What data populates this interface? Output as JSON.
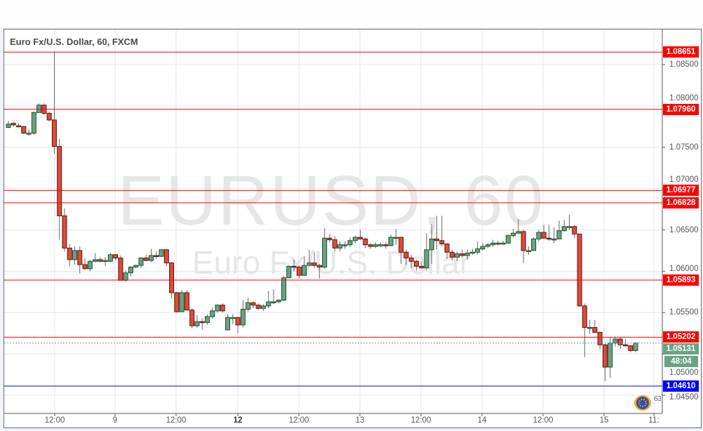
{
  "chart_title": "Euro Fx/U.S. Dollar, 60, FXCM",
  "watermark": {
    "symbol": "EURUSD, 60",
    "name": "Euro Fx/U.S. Dollar"
  },
  "colors": {
    "up": "#6aa384",
    "down": "#dd4b39",
    "level_red": "#ff0000",
    "level_blue": "#0000ff",
    "current": "#6aa384"
  },
  "logo_number": "63",
  "current_price": {
    "value": "1.05131",
    "countdown": "48:04"
  },
  "levels": [
    {
      "value": "1.08651",
      "color": "red"
    },
    {
      "value": "1.07960",
      "color": "red"
    },
    {
      "value": "1.06977",
      "color": "red"
    },
    {
      "value": "1.06828",
      "color": "red"
    },
    {
      "value": "1.05893",
      "color": "red"
    },
    {
      "value": "1.05202",
      "color": "red"
    },
    {
      "value": "1.04610",
      "color": "blue"
    }
  ],
  "price_ticks": [
    "1.08500",
    "1.08000",
    "1.07500",
    "1.07000",
    "1.06500",
    "1.06000",
    "1.05500",
    "1.05000",
    "1.04500"
  ],
  "time_labels": [
    {
      "text": "12:00",
      "bold": false
    },
    {
      "text": "9",
      "bold": false
    },
    {
      "text": "12:00",
      "bold": false
    },
    {
      "text": "12",
      "bold": true
    },
    {
      "text": "12:00",
      "bold": false
    },
    {
      "text": "13",
      "bold": false
    },
    {
      "text": "12:00",
      "bold": false
    },
    {
      "text": "14",
      "bold": false
    },
    {
      "text": "12:00",
      "bold": false
    },
    {
      "text": "15",
      "bold": false
    },
    {
      "text": "11:",
      "bold": false
    }
  ],
  "chart_data": {
    "type": "candlestick",
    "interval": "60",
    "ylim": [
      1.0432,
      1.0893
    ],
    "grid": true,
    "ohlc": [
      [
        1.0774,
        1.0782,
        1.0773,
        1.0778
      ],
      [
        1.0779,
        1.078,
        1.0775,
        1.0777
      ],
      [
        1.0776,
        1.0779,
        1.0774,
        1.0775
      ],
      [
        1.0775,
        1.0776,
        1.0766,
        1.0767
      ],
      [
        1.0767,
        1.0772,
        1.0764,
        1.0767
      ],
      [
        1.0767,
        1.0793,
        1.0765,
        1.0792
      ],
      [
        1.0792,
        1.0803,
        1.0792,
        1.0801
      ],
      [
        1.0801,
        1.0803,
        1.0789,
        1.0791
      ],
      [
        1.0791,
        1.0793,
        1.0781,
        1.0783
      ],
      [
        1.0783,
        1.0865,
        1.0742,
        1.0751
      ],
      [
        1.0751,
        1.076,
        1.0638,
        1.0667
      ],
      [
        1.0667,
        1.0676,
        1.0624,
        1.0628
      ],
      [
        1.0628,
        1.0633,
        1.0606,
        1.0614
      ],
      [
        1.0614,
        1.063,
        1.0608,
        1.0625
      ],
      [
        1.0625,
        1.063,
        1.0597,
        1.0608
      ],
      [
        1.0608,
        1.0616,
        1.0602,
        1.0603
      ],
      [
        1.0603,
        1.0614,
        1.06,
        1.0612
      ],
      [
        1.0612,
        1.0622,
        1.0611,
        1.0614
      ],
      [
        1.0614,
        1.0617,
        1.0611,
        1.0612
      ],
      [
        1.0612,
        1.0617,
        1.0606,
        1.0613
      ],
      [
        1.0612,
        1.0622,
        1.0611,
        1.062
      ],
      [
        1.062,
        1.0621,
        1.0613,
        1.0616
      ],
      [
        1.0616,
        1.0619,
        1.0589,
        1.0589
      ],
      [
        1.0589,
        1.0601,
        1.0587,
        1.0598
      ],
      [
        1.0598,
        1.0606,
        1.0594,
        1.0605
      ],
      [
        1.0605,
        1.0608,
        1.0604,
        1.0607
      ],
      [
        1.0607,
        1.0617,
        1.0604,
        1.0616
      ],
      [
        1.0616,
        1.062,
        1.0612,
        1.0613
      ],
      [
        1.0613,
        1.0627,
        1.0611,
        1.0619
      ],
      [
        1.0619,
        1.0624,
        1.0615,
        1.0618
      ],
      [
        1.0618,
        1.0627,
        1.0617,
        1.0626
      ],
      [
        1.0626,
        1.0627,
        1.0606,
        1.061
      ],
      [
        1.061,
        1.0611,
        1.0567,
        1.0574
      ],
      [
        1.0574,
        1.0575,
        1.055,
        1.0551
      ],
      [
        1.0551,
        1.0577,
        1.0551,
        1.0574
      ],
      [
        1.0574,
        1.0577,
        1.0553,
        1.0553
      ],
      [
        1.0553,
        1.0555,
        1.0531,
        1.0534
      ],
      [
        1.0534,
        1.0547,
        1.0532,
        1.0539
      ],
      [
        1.0539,
        1.0543,
        1.0529,
        1.0538
      ],
      [
        1.0538,
        1.0548,
        1.0535,
        1.0545
      ],
      [
        1.0545,
        1.0556,
        1.0542,
        1.0552
      ],
      [
        1.0552,
        1.056,
        1.055,
        1.0559
      ],
      [
        1.0559,
        1.0561,
        1.055,
        1.0552
      ],
      [
        1.0529,
        1.0548,
        1.0529,
        1.0544
      ],
      [
        1.0544,
        1.0548,
        1.0536,
        1.0544
      ],
      [
        1.0544,
        1.0545,
        1.0525,
        1.0535
      ],
      [
        1.0535,
        1.0565,
        1.0532,
        1.0554
      ],
      [
        1.0554,
        1.0568,
        1.0551,
        1.0562
      ],
      [
        1.0562,
        1.0563,
        1.0555,
        1.0559
      ],
      [
        1.0559,
        1.0561,
        1.0553,
        1.0555
      ],
      [
        1.0555,
        1.056,
        1.0552,
        1.0558
      ],
      [
        1.0558,
        1.0576,
        1.0555,
        1.0563
      ],
      [
        1.0563,
        1.0578,
        1.056,
        1.0563
      ],
      [
        1.0563,
        1.0566,
        1.0561,
        1.0565
      ],
      [
        1.0565,
        1.0594,
        1.0564,
        1.0592
      ],
      [
        1.0592,
        1.0607,
        1.0592,
        1.0606
      ],
      [
        1.0606,
        1.0614,
        1.06,
        1.0605
      ],
      [
        1.0605,
        1.0607,
        1.0591,
        1.0595
      ],
      [
        1.0595,
        1.0618,
        1.0594,
        1.0607
      ],
      [
        1.0607,
        1.0626,
        1.0606,
        1.061
      ],
      [
        1.061,
        1.0623,
        1.0604,
        1.0607
      ],
      [
        1.0607,
        1.0609,
        1.0591,
        1.0605
      ],
      [
        1.0605,
        1.0652,
        1.0603,
        1.064
      ],
      [
        1.064,
        1.0645,
        1.0635,
        1.0638
      ],
      [
        1.0638,
        1.0642,
        1.0624,
        1.0628
      ],
      [
        1.0628,
        1.0636,
        1.0624,
        1.0632
      ],
      [
        1.0632,
        1.0636,
        1.0627,
        1.0632
      ],
      [
        1.0632,
        1.0641,
        1.0629,
        1.0637
      ],
      [
        1.0637,
        1.0643,
        1.0634,
        1.0641
      ],
      [
        1.0641,
        1.065,
        1.0638,
        1.0639
      ],
      [
        1.0639,
        1.0641,
        1.0628,
        1.0632
      ],
      [
        1.0632,
        1.0634,
        1.0627,
        1.063
      ],
      [
        1.063,
        1.0635,
        1.0628,
        1.0632
      ],
      [
        1.0632,
        1.0635,
        1.0629,
        1.0632
      ],
      [
        1.0632,
        1.0635,
        1.0627,
        1.0631
      ],
      [
        1.0631,
        1.0644,
        1.063,
        1.0641
      ],
      [
        1.0641,
        1.0651,
        1.0632,
        1.0641
      ],
      [
        1.0641,
        1.0642,
        1.0609,
        1.0623
      ],
      [
        1.0623,
        1.0626,
        1.0608,
        1.0616
      ],
      [
        1.0616,
        1.062,
        1.0604,
        1.0612
      ],
      [
        1.0612,
        1.0614,
        1.0601,
        1.0606
      ],
      [
        1.0606,
        1.0612,
        1.0603,
        1.0604
      ],
      [
        1.0604,
        1.0646,
        1.0601,
        1.0626
      ],
      [
        1.0626,
        1.0657,
        1.0609,
        1.0639
      ],
      [
        1.0639,
        1.0667,
        1.0626,
        1.0637
      ],
      [
        1.0637,
        1.0667,
        1.063,
        1.0633
      ],
      [
        1.0633,
        1.0634,
        1.0615,
        1.0623
      ],
      [
        1.0623,
        1.0626,
        1.0613,
        1.0617
      ],
      [
        1.0617,
        1.0624,
        1.0612,
        1.0621
      ],
      [
        1.0621,
        1.0626,
        1.0617,
        1.0619
      ],
      [
        1.0619,
        1.0626,
        1.0614,
        1.0622
      ],
      [
        1.0622,
        1.0627,
        1.062,
        1.0623
      ],
      [
        1.0623,
        1.0636,
        1.062,
        1.0627
      ],
      [
        1.0627,
        1.0634,
        1.0625,
        1.063
      ],
      [
        1.063,
        1.0634,
        1.0628,
        1.0632
      ],
      [
        1.0632,
        1.0638,
        1.063,
        1.0634
      ],
      [
        1.0634,
        1.0637,
        1.0631,
        1.0634
      ],
      [
        1.0634,
        1.0637,
        1.0632,
        1.0634
      ],
      [
        1.0634,
        1.0645,
        1.0633,
        1.0643
      ],
      [
        1.0643,
        1.0651,
        1.0641,
        1.0646
      ],
      [
        1.0646,
        1.0663,
        1.0645,
        1.0648
      ],
      [
        1.0648,
        1.065,
        1.061,
        1.0625
      ],
      [
        1.0625,
        1.063,
        1.062,
        1.0625
      ],
      [
        1.0625,
        1.0641,
        1.0625,
        1.0639
      ],
      [
        1.0639,
        1.065,
        1.0636,
        1.0647
      ],
      [
        1.0647,
        1.0656,
        1.0639,
        1.064
      ],
      [
        1.064,
        1.0656,
        1.0637,
        1.0639
      ],
      [
        1.0639,
        1.0653,
        1.0634,
        1.0639
      ],
      [
        1.0639,
        1.0661,
        1.0639,
        1.0649
      ],
      [
        1.0649,
        1.0662,
        1.0648,
        1.0654
      ],
      [
        1.0654,
        1.0668,
        1.065,
        1.0654
      ],
      [
        1.0654,
        1.0656,
        1.064,
        1.0645
      ],
      [
        1.0645,
        1.0645,
        1.0557,
        1.0558
      ],
      [
        1.0558,
        1.0561,
        1.0496,
        1.0532
      ],
      [
        1.0532,
        1.0541,
        1.0524,
        1.0532
      ],
      [
        1.0532,
        1.0541,
        1.0526,
        1.0526
      ],
      [
        1.0526,
        1.0527,
        1.0505,
        1.0511
      ],
      [
        1.0511,
        1.0512,
        1.0467,
        1.0484
      ],
      [
        1.0484,
        1.052,
        1.0471,
        1.0513
      ],
      [
        1.0513,
        1.0521,
        1.0509,
        1.0518
      ],
      [
        1.0518,
        1.052,
        1.0506,
        1.0511
      ],
      [
        1.0511,
        1.0518,
        1.0509,
        1.051
      ],
      [
        1.051,
        1.051,
        1.0502,
        1.0504
      ],
      [
        1.0504,
        1.0514,
        1.0502,
        1.0513
      ]
    ]
  }
}
